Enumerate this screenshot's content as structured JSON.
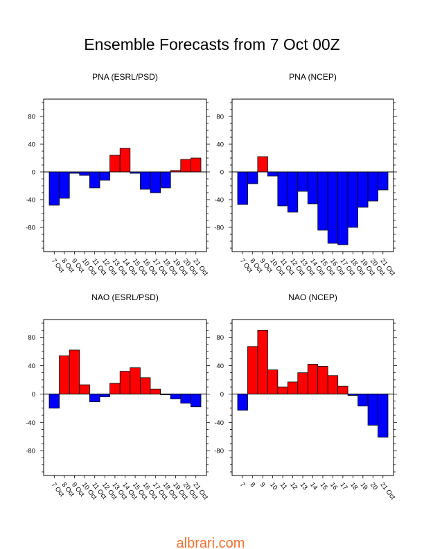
{
  "title": "Ensemble Forecasts from 7 Oct 00Z",
  "watermark": "albrari.com",
  "colors": {
    "positive": "#ff0000",
    "negative": "#0000ff",
    "outline": "#000000"
  },
  "chart_data": [
    {
      "type": "bar",
      "title": "PNA (ESRL/PSD)",
      "categories": [
        "7 Oct",
        "8 Oct",
        "9 Oct",
        "10 Oct",
        "11 Oct",
        "12 Oct",
        "13 Oct",
        "14 Oct",
        "15 Oct",
        "16 Oct",
        "17 Oct",
        "18 Oct",
        "19 Oct",
        "20 Oct",
        "21 Oct"
      ],
      "values": [
        -48,
        -38,
        -2,
        -5,
        -23,
        -12,
        24,
        34,
        -2,
        -25,
        -30,
        -23,
        2,
        18,
        20
      ],
      "ylim": [
        -115,
        105
      ],
      "yticks": [
        -80,
        -40,
        0,
        40,
        80
      ],
      "grid": false,
      "legend": false
    },
    {
      "type": "bar",
      "title": "PNA (NCEP)",
      "categories": [
        "7 Oct",
        "8 Oct",
        "9 Oct",
        "10 Oct",
        "11 Oct",
        "12 Oct",
        "13 Oct",
        "14 Oct",
        "15 Oct",
        "16 Oct",
        "17 Oct",
        "18 Oct",
        "19 Oct",
        "20 Oct",
        "21 Oct"
      ],
      "values": [
        -47,
        -17,
        22,
        -6,
        -49,
        -58,
        -28,
        -46,
        -84,
        -103,
        -105,
        -80,
        -51,
        -42,
        -26
      ],
      "ylim": [
        -115,
        105
      ],
      "yticks": [
        -80,
        -40,
        0,
        40,
        80
      ],
      "grid": false,
      "legend": false
    },
    {
      "type": "bar",
      "title": "NAO (ESRL/PSD)",
      "categories": [
        "7 Oct",
        "8 Oct",
        "9 Oct",
        "10 Oct",
        "11 Oct",
        "12 Oct",
        "13 Oct",
        "14 Oct",
        "15 Oct",
        "16 Oct",
        "17 Oct",
        "18 Oct",
        "19 Oct",
        "20 Oct",
        "21 Oct"
      ],
      "values": [
        -20,
        54,
        62,
        13,
        -11,
        -4,
        15,
        32,
        37,
        23,
        7,
        -1,
        -7,
        -13,
        -18
      ],
      "ylim": [
        -115,
        105
      ],
      "yticks": [
        -80,
        -40,
        0,
        40,
        80
      ],
      "grid": false,
      "legend": false
    },
    {
      "type": "bar",
      "title": "NAO (NCEP)",
      "categories": [
        "7",
        "8",
        "9",
        "10",
        "11",
        "12",
        "13",
        "14",
        "15",
        "16",
        "17",
        "18",
        "19",
        "20",
        "21 Oct"
      ],
      "values": [
        -23,
        67,
        90,
        34,
        10,
        17,
        30,
        42,
        39,
        26,
        11,
        -2,
        -17,
        -44,
        -61
      ],
      "ylim": [
        -115,
        105
      ],
      "yticks": [
        -80,
        -40,
        0,
        40,
        80
      ],
      "grid": false,
      "legend": false
    }
  ]
}
